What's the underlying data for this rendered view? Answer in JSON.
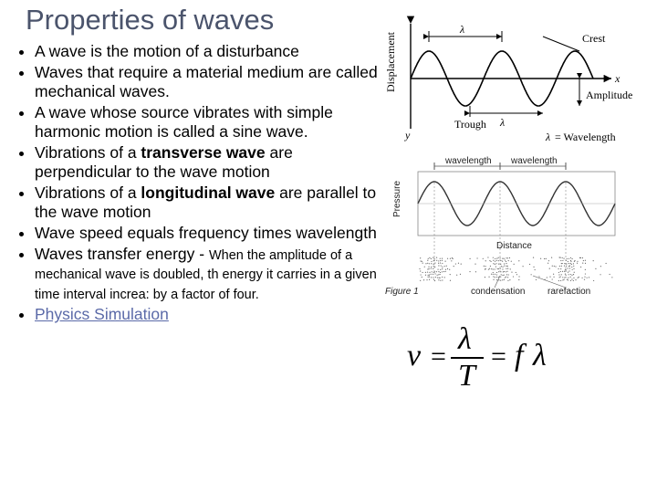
{
  "title": "Properties of waves",
  "bullets": {
    "b1": "A wave is the motion of a disturbance",
    "b2": "Waves that require a material medium are called mechanical waves.",
    "b3": "A wave whose source vibrates with simple harmonic motion is called a sine wave.",
    "b4_pre": "Vibrations of a ",
    "b4_bold": "transverse wave",
    "b4_post": " are perpendicular to the wave motion",
    "b5_pre": "Vibrations of a ",
    "b5_bold": "longitudinal wave",
    "b5_post": " are parallel to the wave motion",
    "b6": "Wave speed equals frequency times wavelength",
    "b7_main": "Waves transfer energy - ",
    "b7_tail": "When the amplitude of a mechanical wave is doubled, th energy it carries in a given time interval increa: by a factor of four.",
    "b8_link": "Physics Simulation"
  },
  "fig1": {
    "ylabel": "Displacement",
    "xlabel": "x",
    "y_axis_letter": "y",
    "crest": "Crest",
    "trough": "Trough",
    "amplitude": "Amplitude",
    "lambda": "λ",
    "wavelength_label": "= Wavelength",
    "line_color": "#000000",
    "wave_color": "#000000",
    "amplitude_cycles": 2.5,
    "wave_amp": 30
  },
  "fig2": {
    "ylabel": "Pressure",
    "xlabel": "Distance",
    "wavelength": "wavelength",
    "condensation": "condensation",
    "rarefaction": "rarefaction",
    "caption": "Figure 1",
    "wave_color": "#333333",
    "dot_color": "#6b6b6b",
    "frame_color": "#888888",
    "cycles": 3
  },
  "formula": {
    "lhs": "ν",
    "num": "λ",
    "den": "T",
    "rhs_f": "f",
    "rhs_l": "λ",
    "eq": "=",
    "color": "#000000",
    "fontsize": 34
  },
  "colors": {
    "title": "#4b546c",
    "link": "#5b6aa8",
    "text": "#000000",
    "bg": "#ffffff"
  }
}
